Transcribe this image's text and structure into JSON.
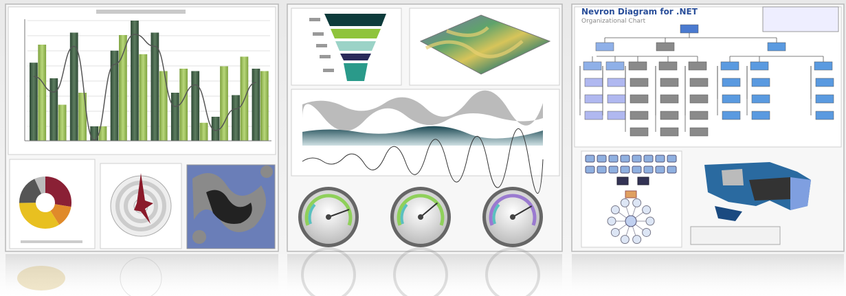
{
  "diagram_panel": {
    "title": "Nevron Diagram for .NET",
    "subtitle": "Organizational Chart"
  },
  "bar_chart": {
    "dark_values": [
      65,
      52,
      90,
      12,
      75,
      100,
      90,
      40,
      58,
      20,
      38,
      60
    ],
    "light_values": [
      80,
      30,
      40,
      12,
      88,
      72,
      58,
      60,
      15,
      62,
      70,
      58
    ]
  }
}
